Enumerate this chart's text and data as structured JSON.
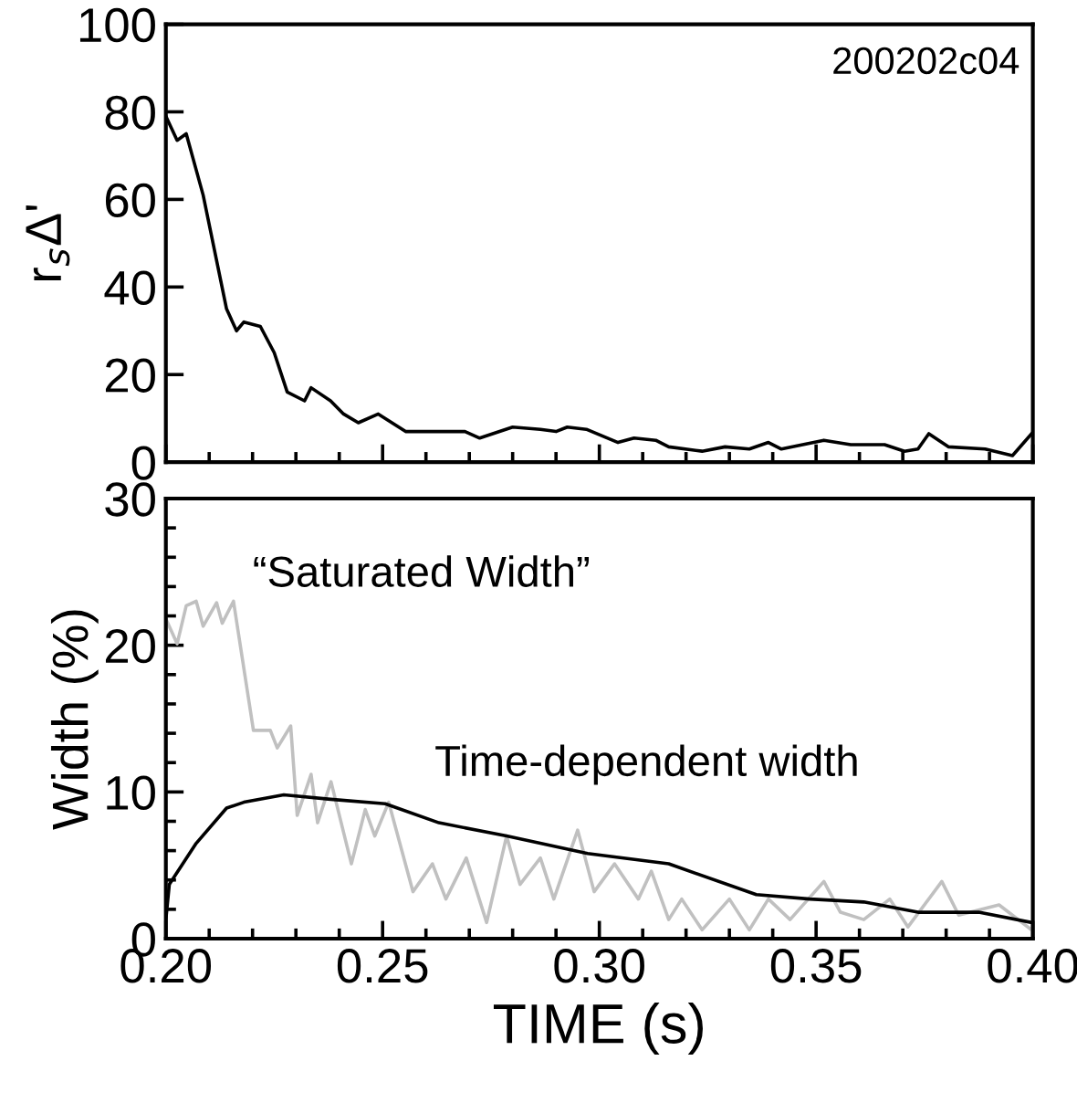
{
  "chart_data": [
    {
      "type": "line",
      "ylabel": "r$_{s}$Δ'",
      "annotations": [
        "200202c04"
      ],
      "xlim": [
        0.2,
        0.4
      ],
      "ylim": [
        0,
        100
      ],
      "yticks": [
        0,
        20,
        40,
        60,
        80,
        100
      ],
      "xticks": [
        {
          "value": 0.2,
          "label": null
        },
        {
          "value": 0.25,
          "label": null
        },
        {
          "value": 0.3,
          "label": null
        },
        {
          "value": 0.35,
          "label": null
        },
        {
          "value": 0.4,
          "label": null
        }
      ],
      "tick_labels": "y",
      "grid": false,
      "legend": false,
      "series": [
        {
          "color": "#000000",
          "x": [
            0.2,
            0.2026,
            0.2047,
            0.2086,
            0.214,
            0.2163,
            0.218,
            0.2218,
            0.225,
            0.228,
            0.232,
            0.2335,
            0.238,
            0.241,
            0.2444,
            0.249,
            0.2553,
            0.269,
            0.2724,
            0.28,
            0.2864,
            0.29,
            0.2926,
            0.297,
            0.3043,
            0.308,
            0.313,
            0.316,
            0.3237,
            0.329,
            0.3346,
            0.339,
            0.342,
            0.3518,
            0.358,
            0.3658,
            0.3704,
            0.3735,
            0.376,
            0.3805,
            0.389,
            0.3953,
            0.3997
          ],
          "values": [
            79,
            73.5,
            75,
            61,
            35,
            30,
            32,
            31,
            25,
            16,
            14,
            17,
            14,
            11,
            9,
            11,
            7,
            7,
            5.5,
            8,
            7.5,
            7,
            8,
            7.5,
            4.5,
            5.5,
            5,
            3.5,
            2.5,
            3.5,
            3,
            4.5,
            3,
            5,
            4,
            4,
            2.5,
            3,
            6.5,
            3.5,
            3,
            1.5,
            6.5
          ]
        }
      ]
    },
    {
      "type": "line",
      "ylabel": "Width (%)",
      "xlabel": "TIME (s)",
      "xlim": [
        0.2,
        0.4
      ],
      "ylim": [
        0,
        30
      ],
      "yticks": [
        0,
        10,
        20,
        30
      ],
      "xticks": [
        {
          "value": 0.2,
          "label": "0.20"
        },
        {
          "value": 0.25,
          "label": "0.25"
        },
        {
          "value": 0.3,
          "label": "0.30"
        },
        {
          "value": 0.35,
          "label": "0.35"
        },
        {
          "value": 0.4,
          "label": "0.40"
        }
      ],
      "grid": false,
      "legend": false,
      "series": [
        {
          "name": "“Saturated Width”",
          "color": "#c0c0c0",
          "x": [
            0.2,
            0.2026,
            0.2047,
            0.207,
            0.2086,
            0.2117,
            0.213,
            0.2156,
            0.2202,
            0.2241,
            0.2257,
            0.2288,
            0.2303,
            0.2335,
            0.235,
            0.2381,
            0.2428,
            0.246,
            0.2482,
            0.2514,
            0.257,
            0.2615,
            0.2646,
            0.2693,
            0.274,
            0.2786,
            0.2817,
            0.2864,
            0.2895,
            0.295,
            0.2988,
            0.3035,
            0.309,
            0.312,
            0.316,
            0.319,
            0.3237,
            0.33,
            0.3346,
            0.339,
            0.344,
            0.3518,
            0.3556,
            0.361,
            0.367,
            0.3712,
            0.379,
            0.3829,
            0.3922,
            0.3997
          ],
          "values": [
            21.8,
            20.1,
            22.7,
            23,
            21.3,
            22.9,
            21.5,
            23,
            14.2,
            14.2,
            13,
            14.5,
            8.4,
            11.2,
            7.9,
            10.7,
            5.1,
            8.8,
            7,
            9.3,
            3.2,
            5.1,
            2.7,
            5.5,
            1.1,
            7,
            3.7,
            5.5,
            2.7,
            7.4,
            3.2,
            5.1,
            2.7,
            4.6,
            1.3,
            2.7,
            0.6,
            2.7,
            0.6,
            2.7,
            1.3,
            3.9,
            1.8,
            1.3,
            2.7,
            0.8,
            3.9,
            1.6,
            2.3,
            0.6
          ]
        },
        {
          "name": "Time-dependent width",
          "color": "#000000",
          "x": [
            0.2,
            0.2008,
            0.207,
            0.214,
            0.218,
            0.2272,
            0.238,
            0.2506,
            0.263,
            0.2786,
            0.2973,
            0.316,
            0.3362,
            0.3486,
            0.361,
            0.3735,
            0.3875,
            0.3997
          ],
          "values": [
            1.3,
            3.7,
            6.5,
            8.9,
            9.3,
            9.8,
            9.5,
            9.2,
            7.9,
            7,
            5.8,
            5.1,
            3,
            2.7,
            2.5,
            1.8,
            1.8,
            1.1
          ]
        }
      ]
    }
  ]
}
